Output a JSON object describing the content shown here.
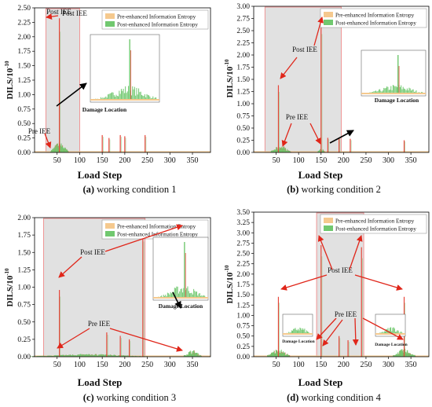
{
  "figure": {
    "panels": [
      {
        "tag": "(a)",
        "caption": "working condition 1"
      },
      {
        "tag": "(b)",
        "caption": "working condition 2"
      },
      {
        "tag": "(c)",
        "caption": "working condition 3"
      },
      {
        "tag": "(d)",
        "caption": "working condition 4"
      }
    ]
  },
  "colors": {
    "pre": "#f5c98e",
    "post": "#71c86f",
    "red_spike": "#e8463a",
    "arrow_red": "#e0261a",
    "shade": "#dcdcdc",
    "shade_border": "#f08080"
  },
  "chart_data": [
    {
      "type": "bar",
      "panel": "a",
      "xlabel": "Load Step",
      "ylabel": "DILS/10",
      "ylabel_exponent": "-10",
      "xlim": [
        0,
        390
      ],
      "ylim": [
        0,
        2.5
      ],
      "xticks": [
        50,
        100,
        150,
        200,
        250,
        300,
        350
      ],
      "yticks": [
        "0.00",
        "0.25",
        "0.50",
        "0.75",
        "1.00",
        "1.25",
        "1.50",
        "1.75",
        "2.00",
        "2.25",
        "2.50"
      ],
      "legend": [
        "Pre-enhanced Information Entropy",
        "Post-enhanced Information Entropy"
      ],
      "legend_position": "top-right",
      "shaded_ranges": [
        [
          25,
          100
        ]
      ],
      "annotations": [
        "Post IEE",
        "Pre IEE"
      ],
      "inset_label": "Damage Location",
      "spikes": [
        {
          "x": 55,
          "y": 2.32
        },
        {
          "x": 150,
          "y": 0.3
        },
        {
          "x": 165,
          "y": 0.25
        },
        {
          "x": 190,
          "y": 0.3
        },
        {
          "x": 200,
          "y": 0.28
        },
        {
          "x": 245,
          "y": 0.3
        }
      ],
      "bumps": [
        {
          "center": 55,
          "width": 40,
          "height": 0.18
        }
      ]
    },
    {
      "type": "bar",
      "panel": "b",
      "xlabel": "Load Step",
      "ylabel": "DILS/10",
      "ylabel_exponent": "-10",
      "xlim": [
        0,
        390
      ],
      "ylim": [
        0,
        3.0
      ],
      "xticks": [
        50,
        100,
        150,
        200,
        250,
        300,
        350
      ],
      "yticks": [
        "0.00",
        "0.25",
        "0.50",
        "0.75",
        "1.00",
        "1.25",
        "1.50",
        "1.75",
        "2.00",
        "2.25",
        "2.50",
        "2.75",
        "3.00"
      ],
      "legend": [
        "Pre-enhanced Information Entropy",
        "Post-enhanced Information Entropy"
      ],
      "legend_position": "top-right",
      "shaded_ranges": [
        [
          25,
          195
        ]
      ],
      "annotations": [
        "Post IEE",
        "Pre IEE"
      ],
      "inset_label": "Damage Location",
      "spikes": [
        {
          "x": 55,
          "y": 1.38
        },
        {
          "x": 150,
          "y": 2.7
        },
        {
          "x": 165,
          "y": 0.3
        },
        {
          "x": 190,
          "y": 0.3
        },
        {
          "x": 215,
          "y": 0.28
        },
        {
          "x": 335,
          "y": 0.25
        }
      ],
      "bumps": [
        {
          "center": 60,
          "width": 45,
          "height": 0.15
        },
        {
          "center": 150,
          "width": 15,
          "height": 0.1
        }
      ]
    },
    {
      "type": "bar",
      "panel": "c",
      "xlabel": "Load Step",
      "ylabel": "DILS/10",
      "ylabel_exponent": "-10",
      "xlim": [
        0,
        390
      ],
      "ylim": [
        0,
        2.0
      ],
      "xticks": [
        50,
        100,
        150,
        200,
        250,
        300,
        350
      ],
      "yticks": [
        "0.00",
        "0.25",
        "0.50",
        "0.75",
        "1.00",
        "1.25",
        "1.50",
        "1.75",
        "2.00"
      ],
      "legend": [
        "Pre-enhanced Information Entropy",
        "Post-enhanced Information Entropy"
      ],
      "legend_position": "top-right",
      "shaded_ranges": [
        [
          20,
          245
        ]
      ],
      "annotations": [
        "Post IEE",
        "Pre IEE"
      ],
      "inset_label": "Damage Location",
      "spikes": [
        {
          "x": 55,
          "y": 0.96
        },
        {
          "x": 160,
          "y": 0.35
        },
        {
          "x": 190,
          "y": 0.3
        },
        {
          "x": 210,
          "y": 0.25
        },
        {
          "x": 240,
          "y": 1.84
        }
      ],
      "bumps": [
        {
          "center": 120,
          "width": 260,
          "height": 0.04
        },
        {
          "center": 350,
          "width": 40,
          "height": 0.1
        }
      ]
    },
    {
      "type": "bar",
      "panel": "d",
      "xlabel": "Load Step",
      "ylabel": "DILS/10",
      "ylabel_exponent": "-10",
      "xlim": [
        0,
        390
      ],
      "ylim": [
        0,
        3.5
      ],
      "xticks": [
        50,
        100,
        150,
        200,
        250,
        300,
        350
      ],
      "yticks": [
        "0.00",
        "0.25",
        "0.50",
        "0.75",
        "1.00",
        "1.25",
        "1.50",
        "1.75",
        "2.00",
        "2.25",
        "2.50",
        "2.75",
        "3.00",
        "3.25",
        "3.50"
      ],
      "legend": [
        "Pre-enhanced Information Entropy",
        "Post-enhanced Information Entropy"
      ],
      "legend_position": "top-right",
      "shaded_ranges": [
        [
          140,
          245
        ]
      ],
      "annotations": [
        "Post IEE",
        "Pre IEE"
      ],
      "inset_label": "Damage Location",
      "spikes": [
        {
          "x": 55,
          "y": 1.45
        },
        {
          "x": 150,
          "y": 2.7
        },
        {
          "x": 190,
          "y": 0.5
        },
        {
          "x": 210,
          "y": 0.4
        },
        {
          "x": 240,
          "y": 2.65
        },
        {
          "x": 335,
          "y": 1.45
        }
      ],
      "bumps": [
        {
          "center": 55,
          "width": 50,
          "height": 0.2
        },
        {
          "center": 335,
          "width": 50,
          "height": 0.2
        }
      ]
    }
  ]
}
